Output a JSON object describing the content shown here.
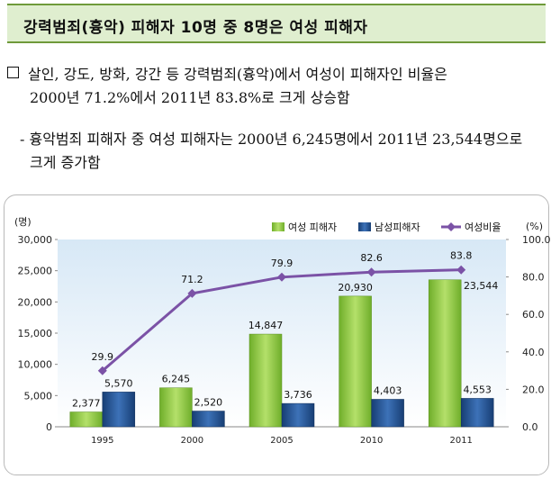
{
  "header": {
    "title": "강력범죄(흉악) 피해자 10명 중 8명은 여성 피해자"
  },
  "body": {
    "bullet1_line1": "살인, 강도, 방화, 강간 등 강력범죄(흉악)에서 여성이 피해자인 비율은",
    "bullet1_line2": "2000년 71.2%에서 2011년 83.8%로 크게 상승함",
    "bullet2_line1": "- 흉악범죄 피해자 중 여성 피해자는 2000년 6,245명에서 2011년 23,544명으로",
    "bullet2_line2": "크게 증가함"
  },
  "chart_data": {
    "type": "bar",
    "categories": [
      "1995",
      "2000",
      "2005",
      "2010",
      "2011"
    ],
    "series": [
      {
        "name": "여성 피해자",
        "kind": "bar",
        "axis": "left",
        "values": [
          2377,
          6245,
          14847,
          20930,
          23544
        ],
        "labels": [
          "2,377",
          "6,245",
          "14,847",
          "20,930",
          "23,544"
        ],
        "color": "#8cc63f"
      },
      {
        "name": "남성피해자",
        "kind": "bar",
        "axis": "left",
        "values": [
          5570,
          2520,
          3736,
          4403,
          4553
        ],
        "labels": [
          "5,570",
          "2,520",
          "3,736",
          "4,403",
          "4,553"
        ],
        "color": "#1f4e8c"
      },
      {
        "name": "여성비율",
        "kind": "line",
        "axis": "right",
        "values": [
          29.9,
          71.2,
          79.9,
          82.6,
          83.8
        ],
        "labels": [
          "29.9",
          "71.2",
          "79.9",
          "82.6",
          "83.8"
        ],
        "color": "#7b52a6"
      }
    ],
    "left_axis": {
      "unit": "(명)",
      "min": 0,
      "max": 30000,
      "ticks": [
        "0",
        "5,000",
        "10,000",
        "15,000",
        "20,000",
        "25,000",
        "30,000"
      ]
    },
    "right_axis": {
      "unit": "(%)",
      "min": 0,
      "max": 100,
      "ticks": [
        "0.0",
        "20.0",
        "40.0",
        "60.0",
        "80.0",
        "100.0"
      ]
    },
    "grid": false,
    "legend": "top-right"
  }
}
